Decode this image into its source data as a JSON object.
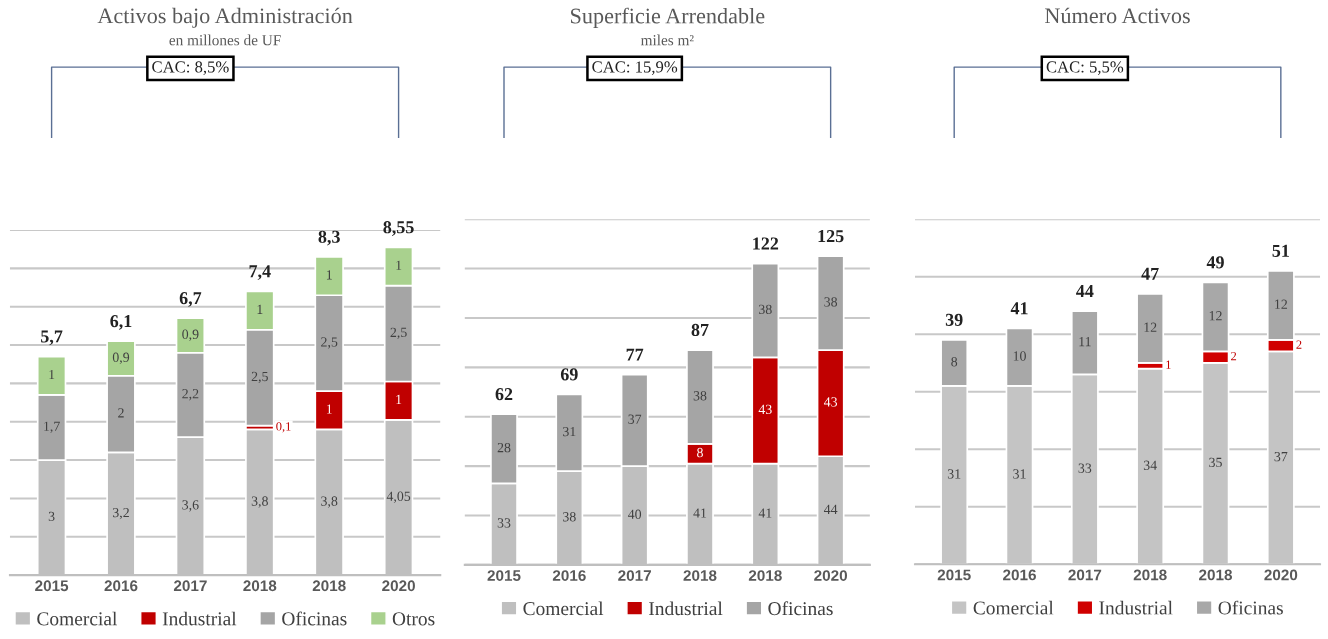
{
  "chart_data": [
    {
      "type": "bar",
      "title": "Activos bajo Administración",
      "subtitle": "en millones de UF",
      "annotations": [
        "CAC: 8,5%"
      ],
      "categories": [
        "2015",
        "2016",
        "2017",
        "2018",
        "2018",
        "2020"
      ],
      "stacked": true,
      "ylim": [
        0,
        9
      ],
      "yticks": [
        {
          "value": 0,
          "label": null
        },
        {
          "value": 1,
          "label": null
        },
        {
          "value": 2,
          "label": null
        },
        {
          "value": 3,
          "label": null
        },
        {
          "value": 4,
          "label": null
        },
        {
          "value": 5,
          "label": null
        },
        {
          "value": 6,
          "label": null
        },
        {
          "value": 7,
          "label": null
        },
        {
          "value": 8,
          "label": null
        },
        {
          "value": 9,
          "label": null
        }
      ],
      "tick_labels": "x",
      "grid": "y",
      "legend": "bottom",
      "totals": [
        "5,7",
        "6,1",
        "6,7",
        "7,4",
        "8,3",
        "8,55"
      ],
      "series": [
        {
          "name": "Comercial",
          "color": "#bfbfbf",
          "values": [
            3,
            3.2,
            3.6,
            3.8,
            3.8,
            4.05
          ],
          "value_labels": [
            "3",
            "3,2",
            "3,6",
            "3,8",
            "3,8",
            "4,05"
          ]
        },
        {
          "name": "Industrial",
          "color": "#c00000",
          "values": [
            null,
            null,
            null,
            0.1,
            1,
            1
          ],
          "value_labels": [
            null,
            null,
            null,
            "0,1",
            "1",
            "1"
          ]
        },
        {
          "name": "Oficinas",
          "color": "#a5a5a5",
          "values": [
            1.7,
            2,
            2.2,
            2.5,
            2.5,
            2.5
          ],
          "value_labels": [
            "1,7",
            "2",
            "2,2",
            "2,5",
            "2,5",
            "2,5"
          ]
        },
        {
          "name": "Otros",
          "color": "#a9d18e",
          "values": [
            1,
            0.9,
            0.9,
            1,
            1,
            1
          ],
          "value_labels": [
            "1",
            "0,9",
            "0,9",
            "1",
            "1",
            "1"
          ]
        }
      ]
    },
    {
      "type": "bar",
      "title": "Superficie Arrendable",
      "subtitle": "miles m²",
      "annotations": [
        "CAC: 15,9%"
      ],
      "categories": [
        "2015",
        "2016",
        "2017",
        "2018",
        "2018",
        "2020"
      ],
      "stacked": true,
      "ylim": [
        0,
        140
      ],
      "yticks": [
        {
          "value": 0,
          "label": null
        },
        {
          "value": 20,
          "label": null
        },
        {
          "value": 40,
          "label": null
        },
        {
          "value": 60,
          "label": null
        },
        {
          "value": 80,
          "label": null
        },
        {
          "value": 100,
          "label": null
        },
        {
          "value": 120,
          "label": null
        },
        {
          "value": 140,
          "label": null
        }
      ],
      "tick_labels": "x",
      "grid": "y",
      "legend": "bottom",
      "totals": [
        "62",
        "69",
        "77",
        "87",
        "122",
        "125"
      ],
      "series": [
        {
          "name": "Comercial",
          "color": "#bfbfbf",
          "values": [
            33,
            38,
            40,
            41,
            41,
            44
          ],
          "value_labels": [
            "33",
            "38",
            "40",
            "41",
            "41",
            "44"
          ]
        },
        {
          "name": "Industrial",
          "color": "#c00000",
          "values": [
            null,
            null,
            null,
            8,
            43,
            43
          ],
          "value_labels": [
            null,
            null,
            null,
            "8",
            "43",
            "43"
          ]
        },
        {
          "name": "Oficinas",
          "color": "#a5a5a5",
          "values": [
            28,
            31,
            37,
            38,
            38,
            38
          ],
          "value_labels": [
            "28",
            "31",
            "37",
            "38",
            "38",
            "38"
          ]
        }
      ]
    },
    {
      "type": "bar",
      "title": "Número Activos",
      "annotations": [
        "CAC: 5,5%"
      ],
      "categories": [
        "2015",
        "2016",
        "2017",
        "2018",
        "2018",
        "2020"
      ],
      "stacked": true,
      "ylim": [
        0,
        60
      ],
      "yticks": [
        {
          "value": 0,
          "label": null
        },
        {
          "value": 10,
          "label": null
        },
        {
          "value": 20,
          "label": null
        },
        {
          "value": 30,
          "label": null
        },
        {
          "value": 40,
          "label": null
        },
        {
          "value": 50,
          "label": null
        },
        {
          "value": 60,
          "label": null
        }
      ],
      "tick_labels": "x",
      "grid": "y",
      "legend": "bottom",
      "totals": [
        "39",
        "41",
        "44",
        "47",
        "49",
        "51"
      ],
      "series": [
        {
          "name": "Comercial",
          "color": "#c4c4c4",
          "values": [
            31,
            31,
            33,
            34,
            35,
            37
          ],
          "value_labels": [
            "31",
            "31",
            "33",
            "34",
            "35",
            "37"
          ]
        },
        {
          "name": "Industrial",
          "color": "#d00000",
          "values": [
            null,
            null,
            null,
            1,
            2,
            2
          ],
          "value_labels": [
            null,
            null,
            null,
            "1",
            "2",
            "2"
          ]
        },
        {
          "name": "Oficinas",
          "color": "#a8a8a8",
          "values": [
            8,
            10,
            11,
            12,
            12,
            12
          ],
          "value_labels": [
            "8",
            "10",
            "11",
            "12",
            "12",
            "12"
          ]
        }
      ]
    }
  ]
}
